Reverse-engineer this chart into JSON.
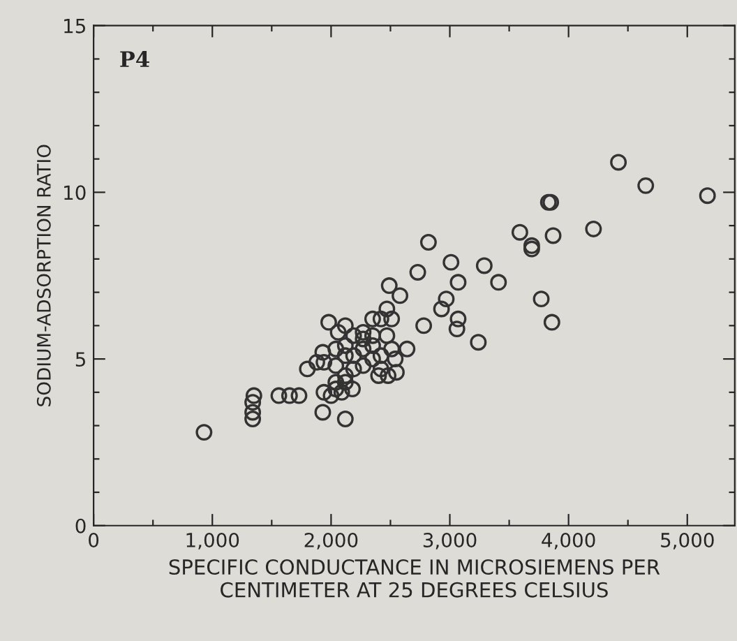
{
  "chart_data": {
    "type": "scatter",
    "xlabel": "SPECIFIC CONDUCTANCE IN MICROSIEMENS PER\nCENTIMETER AT 25 DEGREES CELSIUS",
    "ylabel": "SODIUM-ADSORPTION RATIO",
    "annotations": [
      "P4"
    ],
    "xlim": [
      0,
      5400
    ],
    "ylim": [
      0,
      15
    ],
    "xticks": [
      0,
      {
        "value": 500,
        "label": null
      },
      {
        "value": 1000,
        "label": "1,000"
      },
      {
        "value": 1500,
        "label": null
      },
      {
        "value": 2000,
        "label": "2,000"
      },
      {
        "value": 2500,
        "label": null
      },
      {
        "value": 3000,
        "label": "3,000"
      },
      {
        "value": 3500,
        "label": null
      },
      {
        "value": 4000,
        "label": "4,000"
      },
      {
        "value": 4500,
        "label": null
      },
      {
        "value": 5000,
        "label": "5,000"
      }
    ],
    "yticks": [
      0,
      {
        "value": 1,
        "label": null
      },
      {
        "value": 2,
        "label": null
      },
      {
        "value": 3,
        "label": null
      },
      {
        "value": 4,
        "label": null
      },
      5,
      {
        "value": 6,
        "label": null
      },
      {
        "value": 7,
        "label": null
      },
      {
        "value": 8,
        "label": null
      },
      {
        "value": 9,
        "label": null
      },
      10,
      {
        "value": 11,
        "label": null
      },
      {
        "value": 12,
        "label": null
      },
      {
        "value": 13,
        "label": null
      },
      {
        "value": 14,
        "label": null
      },
      15
    ],
    "grid": false,
    "marker": "circle",
    "series": [
      {
        "color": "#333333",
        "x": [
          930,
          1340,
          1340,
          1340,
          1350,
          1560,
          1650,
          1730,
          1930,
          2120,
          1800,
          1980,
          2120,
          2490,
          2580,
          2730,
          2820,
          2780,
          2470,
          2640,
          2550,
          2400,
          3010,
          3070,
          3290,
          3410,
          2970,
          2930,
          3070,
          3060,
          3240,
          3590,
          3690,
          3690,
          3870,
          4210,
          3830,
          3850,
          3770,
          3860,
          4420,
          4650,
          5170,
          1930,
          1940,
          2060,
          1940,
          2000,
          2090,
          2180,
          2120,
          2040,
          2190,
          2270,
          2350,
          2420,
          2510,
          2470,
          2350,
          2270,
          2190,
          2120,
          2040,
          2190,
          2270,
          2350,
          2420,
          2510,
          2540,
          2420,
          2480,
          2040,
          1880,
          2350,
          2270,
          2120,
          2120,
          2040
        ],
        "values": [
          2.8,
          3.2,
          3.4,
          3.7,
          3.9,
          3.9,
          3.9,
          3.9,
          3.4,
          3.2,
          4.7,
          6.1,
          6.0,
          7.2,
          6.9,
          7.6,
          8.5,
          6.0,
          6.5,
          5.3,
          4.6,
          4.5,
          7.9,
          7.3,
          7.8,
          7.3,
          6.8,
          6.5,
          6.2,
          5.9,
          5.5,
          8.8,
          8.4,
          8.3,
          8.7,
          8.9,
          9.7,
          9.7,
          6.8,
          6.1,
          10.9,
          10.2,
          9.9,
          5.2,
          4.9,
          5.8,
          4.0,
          3.9,
          4.0,
          4.1,
          4.3,
          4.3,
          5.7,
          5.8,
          6.2,
          6.2,
          6.2,
          5.7,
          5.7,
          5.3,
          5.1,
          5.1,
          4.8,
          4.7,
          4.8,
          5.0,
          5.1,
          5.3,
          5.0,
          4.7,
          4.5,
          5.3,
          4.9,
          5.4,
          5.6,
          5.4,
          4.5,
          4.1
        ]
      }
    ]
  }
}
